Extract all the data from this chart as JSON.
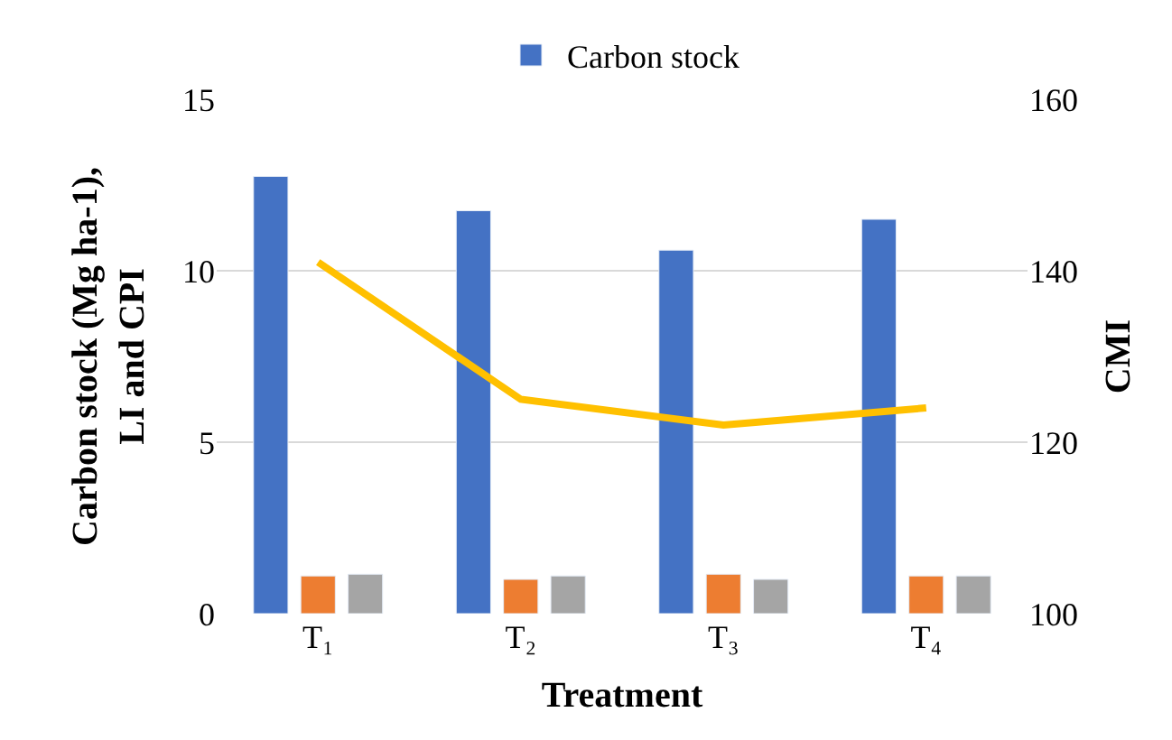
{
  "chart_data": {
    "type": "bar",
    "categories": [
      "T₁",
      "T₂",
      "T₃",
      "T₄"
    ],
    "xlabel": "Treatment",
    "ylabel": "Carbon stock (Mg ha-1),\nLI and CPI",
    "y2label": "CMI",
    "series": [
      {
        "name": "Carbon stock",
        "color": "#4472c4",
        "values": [
          12.75,
          11.75,
          10.6,
          11.5
        ]
      },
      {
        "color": "#ed7d31",
        "values": [
          1.1,
          1.0,
          1.15,
          1.1
        ]
      },
      {
        "color": "#a5a5a5",
        "values": [
          1.15,
          1.1,
          1.0,
          1.1
        ]
      },
      {
        "type": "line",
        "axis": "y2",
        "color": "#ffc000",
        "values": [
          141,
          125,
          122,
          124
        ]
      }
    ],
    "ylim": [
      0,
      15
    ],
    "yticks": [
      0,
      5,
      10,
      15
    ],
    "y2lim": [
      100,
      160
    ],
    "y2ticks": [
      100,
      120,
      140,
      160
    ],
    "grid": "y",
    "legend": "top",
    "marker": "none"
  }
}
